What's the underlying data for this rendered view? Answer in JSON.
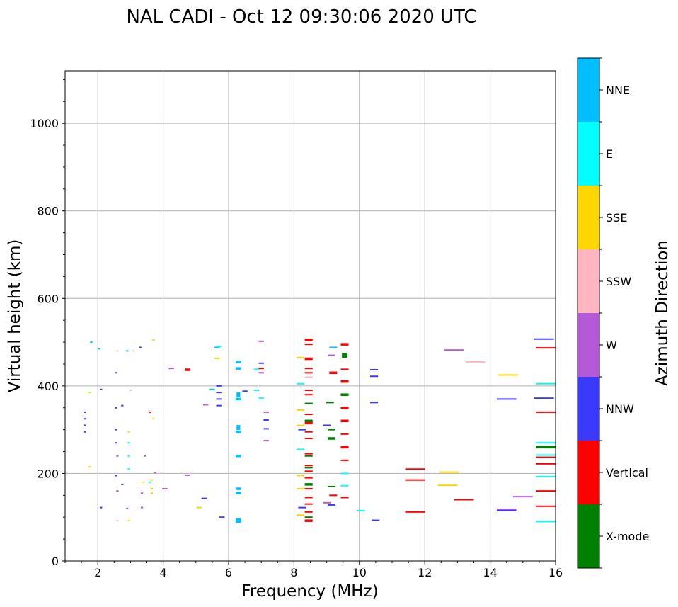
{
  "chart_data": {
    "type": "scatter",
    "title": "NAL CADI - Oct 12 09:30:06 2020 UTC",
    "xlabel": "Frequency (MHz)",
    "ylabel": "Virtual height (km)",
    "xlim": [
      1,
      16
    ],
    "ylim": [
      0,
      1120
    ],
    "xticks": [
      2,
      4,
      6,
      8,
      10,
      12,
      14,
      16
    ],
    "yticks": [
      0,
      200,
      400,
      600,
      800,
      1000
    ],
    "grid": true,
    "colorbar": {
      "label": "Azimuth Direction",
      "categories": [
        {
          "name": "X-mode",
          "color": "#008000"
        },
        {
          "name": "Vertical",
          "color": "#ff0000"
        },
        {
          "name": "NNW",
          "color": "#3a3aff"
        },
        {
          "name": "W",
          "color": "#b45ad6"
        },
        {
          "name": "SSW",
          "color": "#ffb6c1"
        },
        {
          "name": "SSE",
          "color": "#ffd700"
        },
        {
          "name": "E",
          "color": "#00ffff"
        },
        {
          "name": "NNE",
          "color": "#00bfff"
        }
      ]
    },
    "series": [
      {
        "name": "NNE",
        "points": [
          [
            6.3,
            455,
            2
          ],
          [
            6.3,
            440,
            2
          ],
          [
            6.3,
            380,
            3
          ],
          [
            6.3,
            370,
            2
          ],
          [
            6.3,
            305,
            3
          ],
          [
            6.3,
            295,
            2
          ],
          [
            6.3,
            240,
            2
          ],
          [
            6.3,
            165,
            2
          ],
          [
            6.3,
            155,
            2
          ],
          [
            6.3,
            95,
            2
          ],
          [
            6.3,
            90,
            2
          ],
          [
            5.65,
            488,
            1
          ],
          [
            5.5,
            392,
            1
          ],
          [
            2.05,
            485,
            1
          ],
          [
            2.9,
            480,
            1
          ],
          [
            9.2,
            488,
            1
          ],
          [
            1.8,
            500,
            1
          ]
        ]
      },
      {
        "name": "E",
        "points": [
          [
            15.7,
            405,
            1
          ],
          [
            15.7,
            270,
            1
          ],
          [
            15.7,
            193,
            1
          ],
          [
            15.7,
            90,
            1
          ],
          [
            15.7,
            242,
            1
          ],
          [
            9.55,
            200,
            1
          ],
          [
            9.55,
            172,
            1
          ],
          [
            10.05,
            115,
            1
          ],
          [
            6.85,
            438,
            1
          ],
          [
            6.85,
            390,
            1
          ],
          [
            8.2,
            405,
            1
          ],
          [
            8.2,
            255,
            1
          ],
          [
            2.95,
            240,
            1
          ],
          [
            2.95,
            210,
            1
          ],
          [
            2.95,
            270,
            1
          ],
          [
            3.6,
            180,
            1
          ],
          [
            5.7,
            490,
            1
          ],
          [
            7.0,
            372,
            1
          ]
        ]
      },
      {
        "name": "SSE",
        "points": [
          [
            14.55,
            425,
            1
          ],
          [
            12.75,
            203,
            1
          ],
          [
            12.7,
            173,
            1
          ],
          [
            8.2,
            195,
            1
          ],
          [
            8.2,
            345,
            1
          ],
          [
            8.2,
            165,
            1
          ],
          [
            8.2,
            105,
            1
          ],
          [
            8.2,
            310,
            1
          ],
          [
            8.2,
            465,
            1
          ],
          [
            3.65,
            185,
            1
          ],
          [
            3.65,
            165,
            1
          ],
          [
            3.65,
            155,
            1
          ],
          [
            3.7,
            505,
            1
          ],
          [
            3.7,
            325,
            1
          ],
          [
            1.75,
            385,
            1
          ],
          [
            1.75,
            215,
            1
          ],
          [
            2.95,
            295,
            1
          ],
          [
            2.95,
            92,
            1
          ],
          [
            5.65,
            463,
            1
          ],
          [
            5.1,
            122,
            1
          ],
          [
            3.4,
            180,
            1
          ]
        ]
      },
      {
        "name": "SSW",
        "points": [
          [
            13.55,
            455,
            1
          ],
          [
            8.45,
            420,
            1
          ],
          [
            2.6,
            92,
            1
          ],
          [
            3.0,
            390,
            1
          ],
          [
            3.1,
            480,
            1
          ],
          [
            2.6,
            480,
            1
          ]
        ]
      },
      {
        "name": "W",
        "points": [
          [
            12.9,
            482,
            1
          ],
          [
            14.5,
            118,
            1
          ],
          [
            15.0,
            147,
            1
          ],
          [
            7.15,
            340,
            1
          ],
          [
            7.15,
            275,
            1
          ],
          [
            7.0,
            502,
            1
          ],
          [
            7.0,
            430,
            1
          ],
          [
            9.0,
            133,
            1
          ],
          [
            9.15,
            470,
            1
          ],
          [
            4.75,
            196,
            1
          ],
          [
            5.3,
            357,
            1
          ],
          [
            3.35,
            155,
            1
          ],
          [
            3.35,
            122,
            1
          ],
          [
            4.05,
            165,
            1
          ],
          [
            3.75,
            202,
            1
          ],
          [
            2.9,
            120,
            1
          ],
          [
            2.6,
            240,
            1
          ],
          [
            2.6,
            160,
            1
          ],
          [
            4.25,
            440,
            1
          ],
          [
            3.45,
            240,
            1
          ]
        ]
      },
      {
        "name": "NNW",
        "points": [
          [
            15.65,
            507,
            1
          ],
          [
            15.65,
            372,
            1
          ],
          [
            14.5,
            370,
            1
          ],
          [
            14.5,
            115,
            1
          ],
          [
            10.45,
            437,
            1
          ],
          [
            10.45,
            422,
            1
          ],
          [
            10.45,
            362,
            1
          ],
          [
            10.5,
            93,
            1
          ],
          [
            9.0,
            310,
            1
          ],
          [
            8.25,
            300,
            1
          ],
          [
            8.25,
            122,
            1
          ],
          [
            9.15,
            128,
            1
          ],
          [
            7.15,
            322,
            1
          ],
          [
            7.15,
            302,
            1
          ],
          [
            7.0,
            452,
            1
          ],
          [
            5.7,
            400,
            1
          ],
          [
            5.7,
            385,
            1
          ],
          [
            5.7,
            370,
            1
          ],
          [
            5.7,
            355,
            1
          ],
          [
            5.25,
            143,
            1
          ],
          [
            5.8,
            100,
            1
          ],
          [
            6.5,
            388,
            1
          ],
          [
            1.6,
            340,
            1
          ],
          [
            1.6,
            325,
            1
          ],
          [
            1.6,
            310,
            1
          ],
          [
            1.6,
            295,
            1
          ],
          [
            2.55,
            300,
            1
          ],
          [
            2.55,
            350,
            1
          ],
          [
            2.55,
            195,
            1
          ],
          [
            2.55,
            270,
            1
          ],
          [
            2.75,
            175,
            1
          ],
          [
            2.75,
            355,
            1
          ],
          [
            2.1,
            122,
            1
          ],
          [
            2.1,
            392,
            1
          ],
          [
            3.3,
            488,
            1
          ],
          [
            2.55,
            430,
            1
          ]
        ]
      },
      {
        "name": "Vertical",
        "points": [
          [
            15.7,
            487,
            1
          ],
          [
            15.7,
            340,
            1
          ],
          [
            15.7,
            237,
            1
          ],
          [
            15.7,
            222,
            1
          ],
          [
            15.7,
            160,
            1
          ],
          [
            15.7,
            125,
            1
          ],
          [
            11.7,
            210,
            1
          ],
          [
            11.7,
            185,
            1
          ],
          [
            11.7,
            112,
            1
          ],
          [
            13.2,
            140,
            1
          ],
          [
            9.55,
            495,
            2
          ],
          [
            9.55,
            438,
            1
          ],
          [
            9.55,
            410,
            2
          ],
          [
            9.55,
            350,
            2
          ],
          [
            9.55,
            320,
            2
          ],
          [
            9.55,
            290,
            1
          ],
          [
            9.55,
            260,
            2
          ],
          [
            9.55,
            230,
            1
          ],
          [
            9.55,
            145,
            1
          ],
          [
            8.45,
            505,
            2
          ],
          [
            8.45,
            495,
            1
          ],
          [
            8.45,
            462,
            2
          ],
          [
            8.45,
            440,
            1
          ],
          [
            8.45,
            430,
            1
          ],
          [
            8.45,
            390,
            1
          ],
          [
            8.45,
            380,
            1
          ],
          [
            8.45,
            335,
            1
          ],
          [
            8.45,
            315,
            2
          ],
          [
            8.45,
            295,
            1
          ],
          [
            8.45,
            280,
            1
          ],
          [
            8.45,
            245,
            1
          ],
          [
            8.45,
            218,
            1
          ],
          [
            8.45,
            205,
            1
          ],
          [
            8.45,
            190,
            1
          ],
          [
            8.45,
            165,
            1
          ],
          [
            8.45,
            145,
            1
          ],
          [
            8.45,
            130,
            1
          ],
          [
            8.45,
            112,
            1
          ],
          [
            8.45,
            92,
            2
          ],
          [
            9.2,
            430,
            2
          ],
          [
            9.2,
            150,
            1
          ],
          [
            4.75,
            437,
            2
          ],
          [
            3.6,
            340,
            1
          ],
          [
            7.0,
            440,
            1
          ]
        ]
      },
      {
        "name": "X-mode",
        "points": [
          [
            9.55,
            470,
            3
          ],
          [
            9.55,
            380,
            2
          ],
          [
            15.7,
            260,
            2
          ],
          [
            9.15,
            300,
            1
          ],
          [
            9.15,
            280,
            2
          ],
          [
            9.15,
            170,
            1
          ],
          [
            9.1,
            362,
            1
          ],
          [
            8.45,
            360,
            1
          ],
          [
            8.45,
            320,
            2
          ],
          [
            8.45,
            240,
            1
          ],
          [
            8.45,
            213,
            1
          ],
          [
            8.45,
            175,
            2
          ],
          [
            8.45,
            100,
            1
          ]
        ]
      }
    ]
  }
}
